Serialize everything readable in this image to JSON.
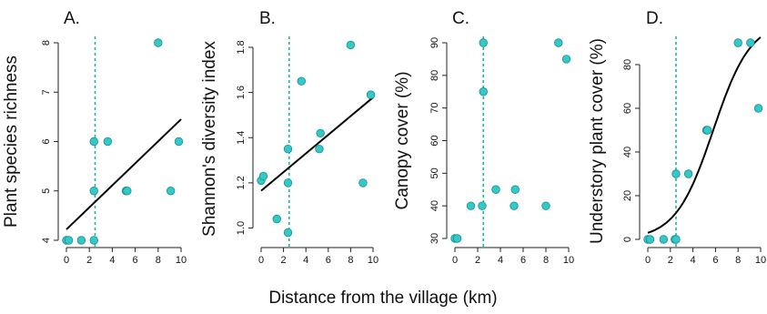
{
  "figure": {
    "xlabel": "Distance from the village (km)",
    "colors": {
      "point_fill": "#33c9c9",
      "point_stroke": "#1a8e8e",
      "dashed_line": "#1fb59a",
      "fit_line": "#000000",
      "axis": "#222222"
    }
  },
  "chart_data": [
    {
      "type": "scatter",
      "panel_label": "A.",
      "ylabel": "Plant species richness",
      "xlim": [
        0,
        10
      ],
      "ylim": [
        4,
        8
      ],
      "xticks": [
        0,
        2,
        4,
        6,
        8,
        10
      ],
      "yticks": [
        4,
        5,
        6,
        7,
        8
      ],
      "ytick_labels": [
        "4",
        "5",
        "6",
        "7",
        "8"
      ],
      "vline_x": 2.5,
      "points": [
        [
          0,
          4
        ],
        [
          0.2,
          4
        ],
        [
          1.3,
          4
        ],
        [
          2.4,
          4
        ],
        [
          2.4,
          5
        ],
        [
          2.4,
          6
        ],
        [
          3.6,
          6
        ],
        [
          5.2,
          5
        ],
        [
          5.3,
          5
        ],
        [
          8.0,
          8
        ],
        [
          9.1,
          5
        ],
        [
          9.8,
          6
        ]
      ],
      "fit": {
        "kind": "linear",
        "x0": 0,
        "y0": 4.22,
        "x1": 10,
        "y1": 6.45
      }
    },
    {
      "type": "scatter",
      "panel_label": "B.",
      "ylabel": "Shannon's diversity index",
      "xlim": [
        0,
        10
      ],
      "ylim": [
        0.97,
        1.82
      ],
      "xticks": [
        0,
        2,
        4,
        6,
        8,
        10
      ],
      "yticks": [
        1.0,
        1.2,
        1.4,
        1.6,
        1.8
      ],
      "ytick_labels": [
        "1.0",
        "1.2",
        "1.4",
        "1.6",
        "1.8"
      ],
      "vline_x": 2.5,
      "points": [
        [
          0,
          1.21
        ],
        [
          0.2,
          1.23
        ],
        [
          1.4,
          1.04
        ],
        [
          2.4,
          0.98
        ],
        [
          2.4,
          1.2
        ],
        [
          2.4,
          1.35
        ],
        [
          3.6,
          1.65
        ],
        [
          5.2,
          1.35
        ],
        [
          5.3,
          1.42
        ],
        [
          8.0,
          1.81
        ],
        [
          9.1,
          1.2
        ],
        [
          9.8,
          1.59
        ]
      ],
      "fit": {
        "kind": "linear",
        "x0": 0,
        "y0": 1.165,
        "x1": 10,
        "y1": 1.578
      }
    },
    {
      "type": "scatter",
      "panel_label": "C.",
      "ylabel": "Canopy cover (%)",
      "xlim": [
        0,
        10
      ],
      "ylim": [
        30,
        90
      ],
      "xticks": [
        0,
        2,
        4,
        6,
        8,
        10
      ],
      "yticks": [
        30,
        40,
        50,
        60,
        70,
        80,
        90
      ],
      "ytick_labels": [
        "30",
        "40",
        "50",
        "60",
        "70",
        "80",
        "90"
      ],
      "vline_x": 2.5,
      "points": [
        [
          0,
          30
        ],
        [
          0.2,
          30
        ],
        [
          1.4,
          40
        ],
        [
          2.4,
          40
        ],
        [
          2.5,
          75
        ],
        [
          2.5,
          90
        ],
        [
          3.6,
          45
        ],
        [
          5.2,
          40
        ],
        [
          5.3,
          45
        ],
        [
          8.0,
          40
        ],
        [
          9.1,
          90
        ],
        [
          9.8,
          85
        ]
      ]
    },
    {
      "type": "scatter",
      "panel_label": "D.",
      "ylabel": "Understory plant cover (%)",
      "xlim": [
        0,
        10
      ],
      "ylim": [
        0,
        90
      ],
      "xticks": [
        0,
        2,
        4,
        6,
        8,
        10
      ],
      "yticks": [
        0,
        20,
        40,
        60,
        80
      ],
      "ytick_labels": [
        "0",
        "20",
        "40",
        "60",
        "80"
      ],
      "vline_x": 2.5,
      "points": [
        [
          0,
          0
        ],
        [
          0.2,
          0
        ],
        [
          1.4,
          0
        ],
        [
          2.4,
          0
        ],
        [
          2.5,
          0
        ],
        [
          2.5,
          30
        ],
        [
          3.6,
          30
        ],
        [
          5.2,
          50
        ],
        [
          5.3,
          50
        ],
        [
          8.0,
          90
        ],
        [
          9.1,
          90
        ],
        [
          9.8,
          60
        ]
      ],
      "fit": {
        "kind": "logistic",
        "L": 100,
        "k": 0.6,
        "x0": 5.8,
        "samples": 60
      }
    }
  ]
}
